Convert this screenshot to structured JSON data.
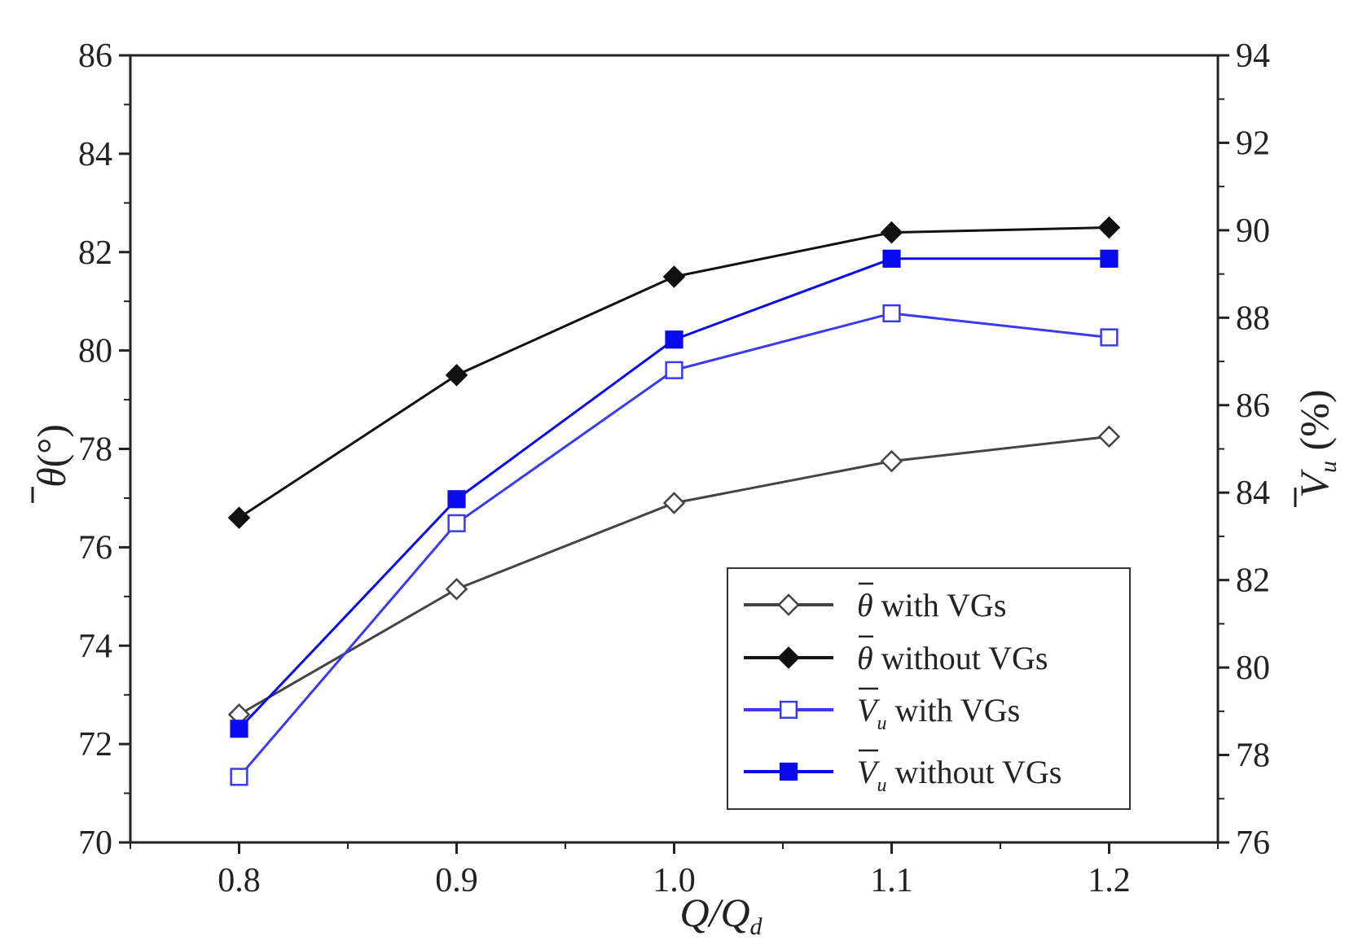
{
  "chart_data": {
    "type": "line",
    "title": "",
    "xlabel": {
      "main": "Q/Q",
      "sub": "d"
    },
    "ylabel_left": {
      "main": "θ",
      "rest": "(°)"
    },
    "ylabel_right": {
      "main": "V",
      "sub": "u",
      "rest": " (%)"
    },
    "x": [
      0.8,
      0.9,
      1.0,
      1.1,
      1.2
    ],
    "x_tick_labels": [
      "0.8",
      "0.9",
      "1.0",
      "1.1",
      "1.2"
    ],
    "xlim": [
      0.75,
      1.25
    ],
    "ylim_left": [
      70,
      86
    ],
    "ylim_right": [
      76,
      94
    ],
    "y_left_ticks": [
      "70",
      "72",
      "74",
      "76",
      "78",
      "80",
      "82",
      "84",
      "86"
    ],
    "y_right_ticks": [
      "76",
      "78",
      "80",
      "82",
      "84",
      "86",
      "88",
      "90",
      "92",
      "94"
    ],
    "grid": false,
    "legend_position": "bottom-right",
    "series": [
      {
        "name": "θ with VGs",
        "symbol": "θ",
        "subscript": "",
        "suffix": " with VGs",
        "axis": "left",
        "color": "#444444",
        "marker": "diamond-open",
        "values": [
          72.6,
          75.15,
          76.9,
          77.75,
          78.25
        ]
      },
      {
        "name": "θ without VGs",
        "symbol": "θ",
        "subscript": "",
        "suffix": " without VGs",
        "axis": "left",
        "color": "#111111",
        "marker": "diamond-filled",
        "values": [
          76.6,
          79.5,
          81.5,
          82.4,
          82.5
        ]
      },
      {
        "name": "Vu with VGs",
        "symbol": "V",
        "subscript": "u",
        "suffix": " with VGs",
        "axis": "right",
        "color": "#3a3af0",
        "marker": "square-open",
        "values": [
          77.5,
          83.3,
          86.8,
          88.1,
          87.55
        ]
      },
      {
        "name": "Vu without VGs",
        "symbol": "V",
        "subscript": "u",
        "suffix": " without VGs",
        "axis": "right",
        "color": "#0a0af0",
        "marker": "square-filled",
        "values": [
          78.6,
          83.85,
          87.5,
          89.35,
          89.35
        ]
      }
    ]
  }
}
